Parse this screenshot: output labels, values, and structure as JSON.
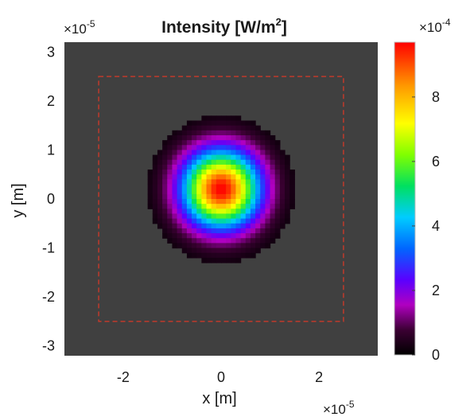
{
  "chart_data": {
    "type": "heatmap",
    "title": "Intensity [W/m",
    "title_superscript": "2",
    "title_close": "]",
    "xlabel": "x [m]",
    "ylabel": "y [m]",
    "x_exponent": "×10",
    "x_exponent_power": "-5",
    "y_exponent": "×10",
    "y_exponent_power": "-5",
    "colorbar_exponent": "×10",
    "colorbar_exponent_power": "-4",
    "xlim": [
      -3.2,
      3.2
    ],
    "ylim": [
      -3.2,
      3.2
    ],
    "xticks": [
      -2,
      0,
      2
    ],
    "yticks": [
      3,
      2,
      1,
      0,
      -1,
      -2,
      -3
    ],
    "colorbar_ticks": [
      0,
      2,
      4,
      6,
      8
    ],
    "colorbar_range": [
      0,
      9.7
    ],
    "colormap": "jet-like (black, purple, magenta, blue, cyan, green, yellow, orange, red)",
    "background_color": "#404040",
    "outer_ring_color": "#2a0a2a",
    "boundary_color": "#c0392b",
    "boundary_style": "dashed",
    "boundary_box": {
      "x": [
        -2.5,
        2.5
      ],
      "y": [
        -2.5,
        2.5
      ]
    },
    "beam": {
      "center_x": 0.0,
      "center_y": 0.2,
      "peak_intensity": 9.7,
      "outer_radius": 1.5,
      "profile": "gaussian"
    },
    "grid": false,
    "legend": "colorbar-right"
  }
}
